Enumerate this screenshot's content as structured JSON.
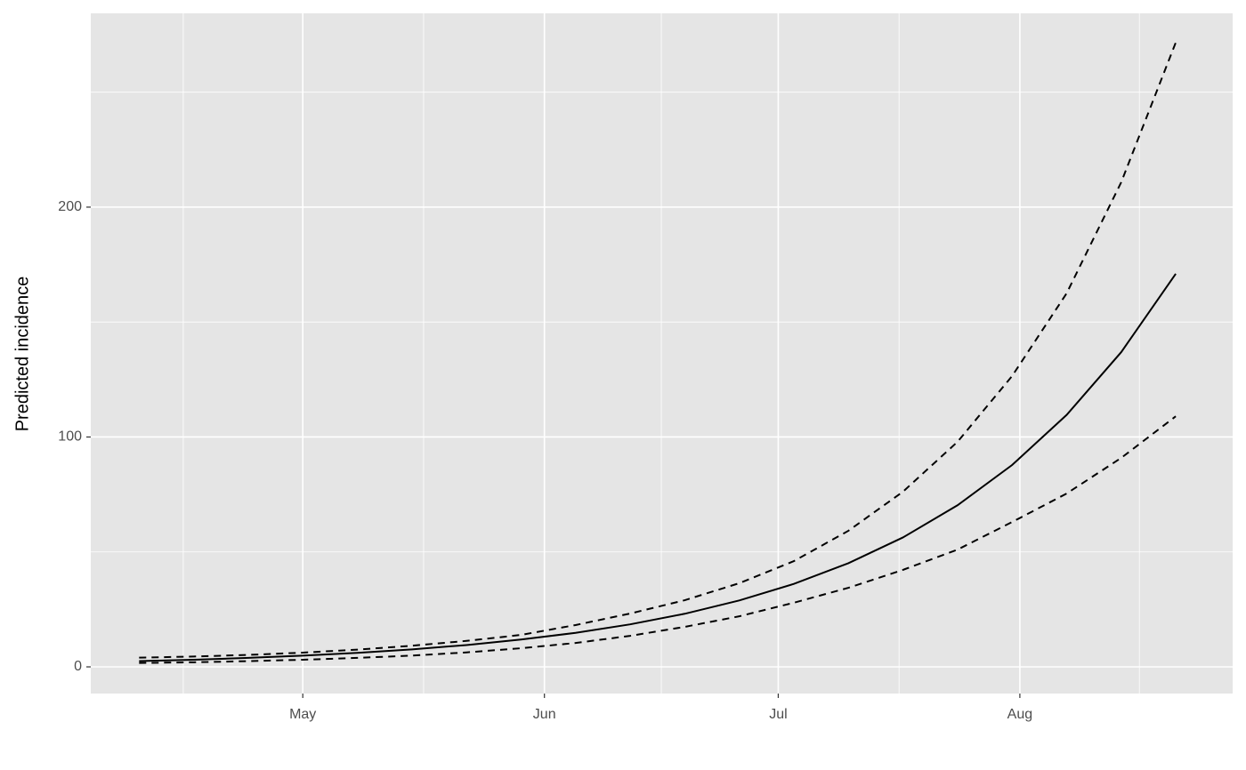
{
  "chart_data": {
    "type": "line",
    "y_label": "Predicted incidence",
    "x": [
      100,
      107,
      114,
      121,
      128,
      135,
      142,
      149,
      156,
      163,
      170,
      177,
      184,
      191,
      198,
      205,
      212,
      219,
      226,
      233
    ],
    "series": [
      {
        "color": "#000000",
        "dashed": false,
        "values": [
          2.5,
          3.1,
          3.9,
          4.9,
          6.1,
          7.6,
          9.5,
          11.9,
          14.8,
          18.5,
          23.1,
          28.9,
          36.1,
          45.1,
          56.3,
          70.3,
          87.8,
          109.6,
          136.9,
          171.0
        ]
      },
      {
        "color": "#000000",
        "dashed": true,
        "values": [
          4.0,
          4.5,
          5.2,
          6.2,
          7.5,
          9.2,
          11.3,
          13.9,
          18.2,
          23.2,
          29.0,
          36.4,
          46.0,
          59.2,
          76.2,
          97.9,
          126.5,
          162.5,
          210.8,
          271.6
        ]
      },
      {
        "color": "#000000",
        "dashed": true,
        "values": [
          1.7,
          2.0,
          2.5,
          3.1,
          3.9,
          4.9,
          6.3,
          8.1,
          10.4,
          13.5,
          17.4,
          22.0,
          27.9,
          34.4,
          42.2,
          51.0,
          63.0,
          75.4,
          90.9,
          109.0
        ]
      }
    ],
    "xlim": [
      93.8,
      240.3
    ],
    "xticks": [
      {
        "value": 121,
        "label": "May"
      },
      {
        "value": 152,
        "label": "Jun"
      },
      {
        "value": 182,
        "label": "Jul"
      },
      {
        "value": 213,
        "label": "Aug"
      }
    ],
    "ylim": [
      -11.6,
      284.3
    ],
    "yticks": [
      0,
      100,
      200
    ],
    "grid": true,
    "panel_color": "#e5e5e5"
  }
}
